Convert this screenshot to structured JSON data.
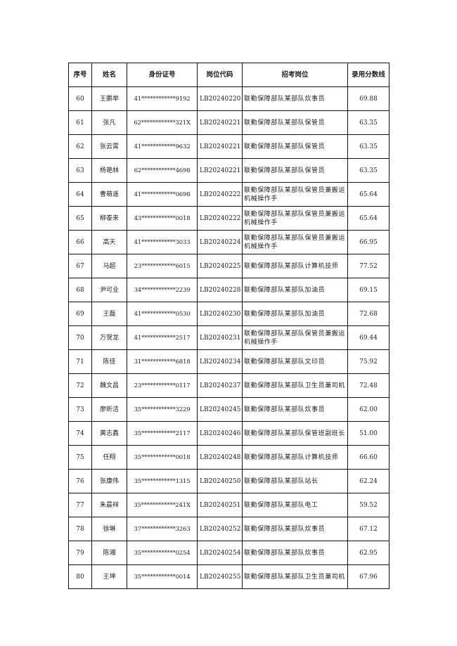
{
  "table": {
    "headers": [
      "序号",
      "姓名",
      "身份证号",
      "岗位代码",
      "招考岗位",
      "录用分数线"
    ],
    "rows": [
      [
        "60",
        "王鹏举",
        "41************9192",
        "LB20240220",
        "联勤保障部队某部队炊事员",
        "69.88"
      ],
      [
        "61",
        "张凡",
        "62************321X",
        "LB20240221",
        "联勤保障部队某部队保管员",
        "63.35"
      ],
      [
        "62",
        "张云霄",
        "41************9632",
        "LB20240221",
        "联勤保障部队某部队保管员",
        "63.35"
      ],
      [
        "63",
        "杨艳林",
        "62************4698",
        "LB20240221",
        "联勤保障部队某部队保管员",
        "63.35"
      ],
      [
        "64",
        "曹萌遥",
        "41************0698",
        "LB20240222",
        "联勤保障部队某部队保管员兼搬运机械操作手",
        "65.64"
      ],
      [
        "65",
        "柳泰来",
        "43************0018",
        "LB20240222",
        "联勤保障部队某部队保管员兼搬运机械操作手",
        "65.64"
      ],
      [
        "66",
        "高天",
        "41************3033",
        "LB20240224",
        "联勤保障部队某部队保管员兼搬运机械操作手",
        "66.95"
      ],
      [
        "67",
        "马超",
        "23************6015",
        "LB20240225",
        "联勤保障部队某部队计算机技师",
        "77.52"
      ],
      [
        "68",
        "尹可业",
        "34************2239",
        "LB20240228",
        "联勤保障部队某部队加油员",
        "69.15"
      ],
      [
        "69",
        "王磊",
        "41************0530",
        "LB20240230",
        "联勤保障部队某部队加油员",
        "72.68"
      ],
      [
        "70",
        "万贺龙",
        "41************2517",
        "LB20240231",
        "联勤保障部队某部队保管员兼搬运机械操作手",
        "69.44"
      ],
      [
        "71",
        "陈佳",
        "31************6818",
        "LB20240234",
        "联勤保障部队某部队文印员",
        "75.92"
      ],
      [
        "72",
        "魏文昌",
        "23************0117",
        "LB20240237",
        "联勤保障部队某部队卫生员兼司机",
        "72.48"
      ],
      [
        "73",
        "廖昕洁",
        "35************3229",
        "LB20240245",
        "联勤保障部队某部队炊事员",
        "62.00"
      ],
      [
        "74",
        "黄志鑫",
        "35************2117",
        "LB20240246",
        "联勤保障部队某部队保管班副班长",
        "51.00"
      ],
      [
        "75",
        "任翔",
        "35************0018",
        "LB20240248",
        "联勤保障部队某部队计算机技师",
        "66.60"
      ],
      [
        "76",
        "张康伟",
        "35************1315",
        "LB20240250",
        "联勤保障部队某部队站长",
        "62.24"
      ],
      [
        "77",
        "朱晨祥",
        "35************241X",
        "LB20240251",
        "联勤保障部队某部队电工",
        "59.52"
      ],
      [
        "78",
        "徐琳",
        "37************3263",
        "LB20240252",
        "联勤保障部队某部队炊事员",
        "67.12"
      ],
      [
        "79",
        "陈湘",
        "35************0254",
        "LB20240254",
        "联勤保障部队某部队炊事员",
        "62.95"
      ],
      [
        "80",
        "王坤",
        "35************0014",
        "LB20240255",
        "联勤保障部队某部队卫生员兼司机",
        "67.96"
      ]
    ]
  }
}
